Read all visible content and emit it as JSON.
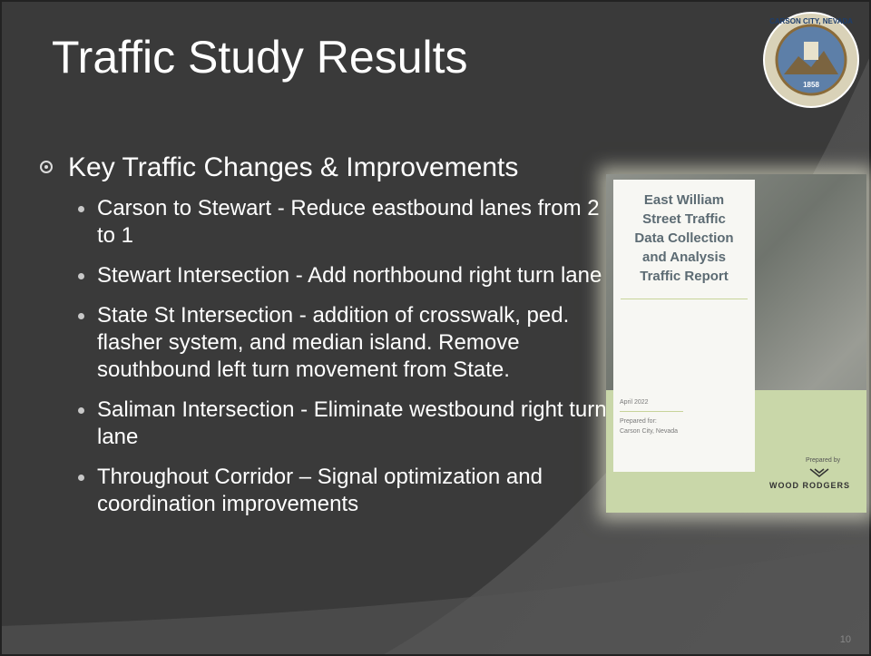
{
  "slide": {
    "title": "Traffic Study Results",
    "seal": {
      "top_text": "CARSON CITY, NEVADA",
      "year": "1858"
    },
    "bullet": "Key Traffic Changes & Improvements",
    "sub_bullets": [
      "Carson to Stewart - Reduce eastbound lanes from 2 to 1",
      "Stewart Intersection - Add northbound right turn lane",
      "State St Intersection - addition of crosswalk, ped. flasher system, and median island. Remove southbound left turn movement from State.",
      "Saliman Intersection - Eliminate westbound right turn lane",
      "Throughout Corridor – Signal optimization and coordination improvements"
    ],
    "report": {
      "title_lines": [
        "East William",
        "Street Traffic",
        "Data Collection",
        "and Analysis",
        "Traffic Report"
      ],
      "date": "April 2022",
      "prepared_for": "Prepared for:",
      "client": "Carson City, Nevada",
      "prepared_by": "Prepared by",
      "firm": "WOOD RODGERS"
    },
    "page_number": "10"
  }
}
